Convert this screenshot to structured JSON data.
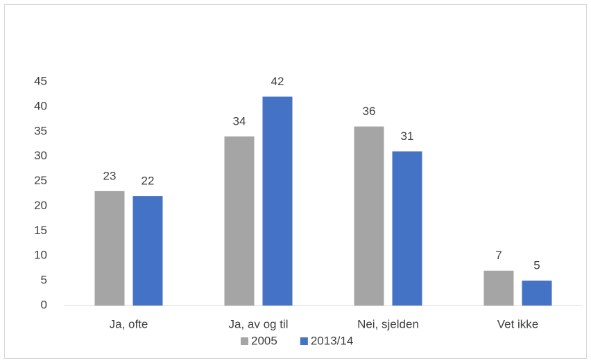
{
  "chart_data": {
    "type": "bar",
    "categories": [
      "Ja, ofte",
      "Ja, av og til",
      "Nei, sjelden",
      "Vet ikke"
    ],
    "series": [
      {
        "name": "2005",
        "color": "#a5a5a5",
        "values": [
          23,
          34,
          36,
          7
        ]
      },
      {
        "name": "2013/14",
        "color": "#4472c4",
        "values": [
          22,
          42,
          31,
          5
        ]
      }
    ],
    "ylim": [
      0,
      45
    ],
    "yticks": [
      0,
      5,
      10,
      15,
      20,
      25,
      30,
      35,
      40,
      45
    ],
    "grid": false,
    "legend": "bottom",
    "data_labels": true
  }
}
